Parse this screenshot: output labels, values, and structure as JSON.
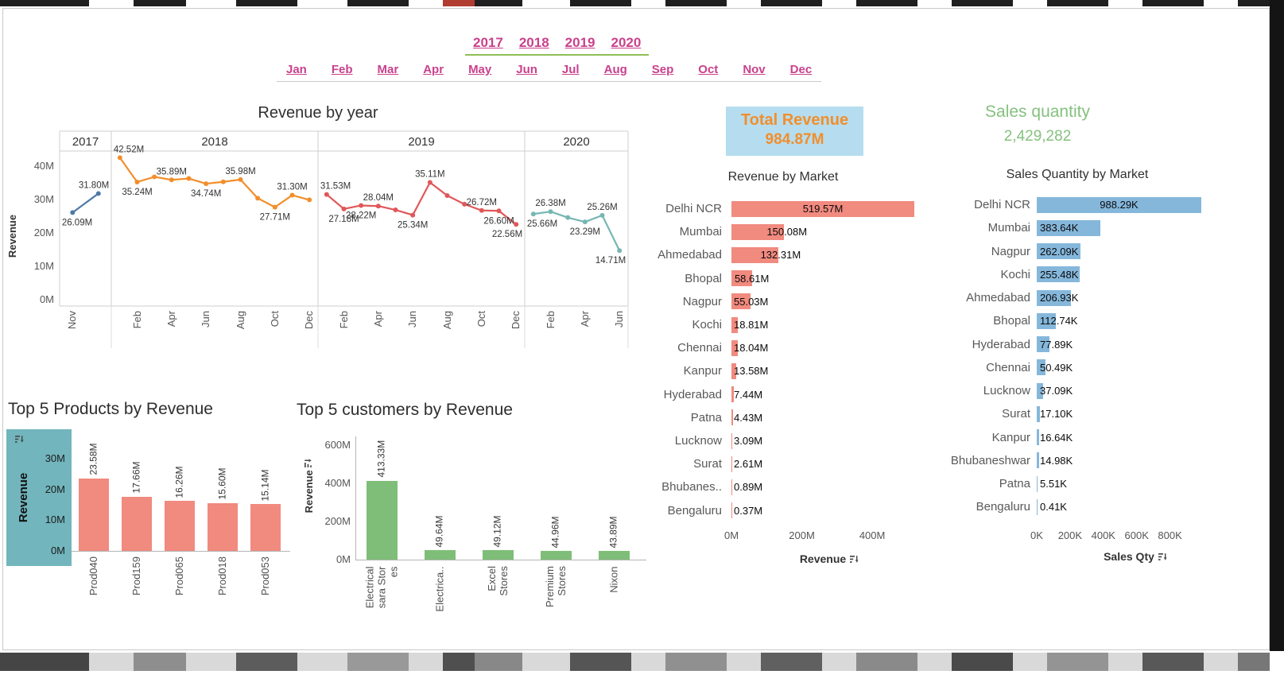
{
  "filters": {
    "years": [
      "2017",
      "2018",
      "2019",
      "2020"
    ],
    "months": [
      "Jan",
      "Feb",
      "Mar",
      "Apr",
      "May",
      "Jun",
      "Jul",
      "Aug",
      "Sep",
      "Oct",
      "Nov",
      "Dec"
    ],
    "text_color": "#c9418c"
  },
  "cards": {
    "total_revenue": {
      "title": "Total Revenue",
      "value": "984.87M",
      "bg": "#b5ddef",
      "color": "#f28e2b"
    },
    "sales_quantity": {
      "title": "Sales quantity",
      "value": "2,429,282",
      "color": "#85c17e"
    }
  },
  "chart_data": [
    {
      "id": "revenue_by_year",
      "type": "line",
      "title": "Revenue by year",
      "ylabel": "Revenue",
      "yticks": [
        "0M",
        "10M",
        "20M",
        "30M",
        "40M"
      ],
      "ytick_values": [
        0,
        10,
        20,
        30,
        40
      ],
      "ylim": [
        0,
        45
      ],
      "unit": "M",
      "note": "points without data labels are estimated from the plot",
      "series": [
        {
          "year": "2017",
          "color": "#4e79a7",
          "months": [
            "Nov",
            "Dec"
          ],
          "values": [
            26.09,
            31.8
          ],
          "point_labels": [
            {
              "i": 0,
              "text": "26.09M",
              "pos": "below"
            },
            {
              "i": 1,
              "text": "31.80M",
              "pos": "above"
            }
          ],
          "xticks": [
            "Nov"
          ]
        },
        {
          "year": "2018",
          "color": "#f28e2b",
          "months": [
            "Jan",
            "Feb",
            "Mar",
            "Apr",
            "May",
            "Jun",
            "Jul",
            "Aug",
            "Sep",
            "Oct",
            "Nov",
            "Dec"
          ],
          "values": [
            42.52,
            35.24,
            36.8,
            35.89,
            36.3,
            34.74,
            35.3,
            35.98,
            30.4,
            27.71,
            31.3,
            29.9
          ],
          "point_labels": [
            {
              "i": 0,
              "text": "42.52M",
              "pos": "above"
            },
            {
              "i": 1,
              "text": "35.24M",
              "pos": "below"
            },
            {
              "i": 3,
              "text": "35.89M",
              "pos": "above"
            },
            {
              "i": 5,
              "text": "34.74M",
              "pos": "below"
            },
            {
              "i": 7,
              "text": "35.98M",
              "pos": "above"
            },
            {
              "i": 9,
              "text": "27.71M",
              "pos": "below"
            },
            {
              "i": 10,
              "text": "31.30M",
              "pos": "above"
            }
          ],
          "xticks": [
            "Feb",
            "Apr",
            "Jun",
            "Aug",
            "Oct",
            "Dec"
          ]
        },
        {
          "year": "2019",
          "color": "#e15759",
          "months": [
            "Jan",
            "Feb",
            "Mar",
            "Apr",
            "May",
            "Jun",
            "Jul",
            "Aug",
            "Sep",
            "Oct",
            "Nov",
            "Dec"
          ],
          "values": [
            31.53,
            27.18,
            28.22,
            28.04,
            26.9,
            25.34,
            35.11,
            31.2,
            28.6,
            26.72,
            26.6,
            22.56
          ],
          "point_labels": [
            {
              "i": 0,
              "text": "31.53M",
              "pos": "above"
            },
            {
              "i": 1,
              "text": "27.18M",
              "pos": "below"
            },
            {
              "i": 2,
              "text": "28.22M",
              "pos": "below"
            },
            {
              "i": 3,
              "text": "28.04M",
              "pos": "above"
            },
            {
              "i": 5,
              "text": "25.34M",
              "pos": "below"
            },
            {
              "i": 6,
              "text": "35.11M",
              "pos": "above"
            },
            {
              "i": 9,
              "text": "26.72M",
              "pos": "above"
            },
            {
              "i": 10,
              "text": "26.60M",
              "pos": "below"
            },
            {
              "i": 11,
              "text": "22.56M",
              "pos": "below"
            }
          ],
          "xticks": [
            "Feb",
            "Apr",
            "Jun",
            "Aug",
            "Oct",
            "Dec"
          ]
        },
        {
          "year": "2020",
          "color": "#76b7b2",
          "months": [
            "Jan",
            "Feb",
            "Mar",
            "Apr",
            "May",
            "Jun"
          ],
          "values": [
            25.66,
            26.38,
            24.6,
            23.29,
            25.26,
            14.71
          ],
          "point_labels": [
            {
              "i": 0,
              "text": "25.66M",
              "pos": "below"
            },
            {
              "i": 1,
              "text": "26.38M",
              "pos": "above"
            },
            {
              "i": 3,
              "text": "23.29M",
              "pos": "below"
            },
            {
              "i": 4,
              "text": "25.26M",
              "pos": "above"
            },
            {
              "i": 5,
              "text": "14.71M",
              "pos": "below"
            }
          ],
          "xticks": [
            "Feb",
            "Apr",
            "Jun"
          ]
        }
      ]
    },
    {
      "id": "revenue_by_market",
      "type": "bar",
      "orientation": "horizontal",
      "title": "Revenue by Market",
      "xlabel": "Revenue",
      "xticks": [
        "0M",
        "200M",
        "400M"
      ],
      "xtick_values": [
        0,
        200,
        400
      ],
      "xlim": [
        0,
        560
      ],
      "unit": "M",
      "bar_color": "#f18a7f",
      "categories": [
        "Delhi NCR",
        "Mumbai",
        "Ahmedabad",
        "Bhopal",
        "Nagpur",
        "Kochi",
        "Chennai",
        "Kanpur",
        "Hyderabad",
        "Patna",
        "Lucknow",
        "Surat",
        "Bhubanes..",
        "Bengaluru"
      ],
      "values": [
        519.57,
        150.08,
        132.31,
        58.61,
        55.03,
        18.81,
        18.04,
        13.58,
        7.44,
        4.43,
        3.09,
        2.61,
        0.89,
        0.37
      ],
      "value_labels": [
        "519.57M",
        "150.08M",
        "132.31M",
        "58.61M",
        "55.03M",
        "18.81M",
        "18.04M",
        "13.58M",
        "7.44M",
        "4.43M",
        "3.09M",
        "2.61M",
        "0.89M",
        "0.37M"
      ]
    },
    {
      "id": "sales_qty_by_market",
      "type": "bar",
      "orientation": "horizontal",
      "title": "Sales Quantity by Market",
      "xlabel": "Sales Qty",
      "xticks": [
        "0K",
        "200K",
        "400K",
        "600K",
        "800K"
      ],
      "xtick_values": [
        0,
        200,
        400,
        600,
        800
      ],
      "xlim": [
        0,
        960
      ],
      "unit": "K",
      "bar_color": "#85b7db",
      "categories": [
        "Delhi NCR",
        "Mumbai",
        "Nagpur",
        "Kochi",
        "Ahmedabad",
        "Bhopal",
        "Hyderabad",
        "Chennai",
        "Lucknow",
        "Surat",
        "Kanpur",
        "Bhubaneshwar",
        "Patna",
        "Bengaluru"
      ],
      "values": [
        988.29,
        383.64,
        262.09,
        255.48,
        206.93,
        112.74,
        77.89,
        50.49,
        37.09,
        17.1,
        16.64,
        14.98,
        5.51,
        0.41
      ],
      "value_labels": [
        "988.29K",
        "383.64K",
        "262.09K",
        "255.48K",
        "206.93K",
        "112.74K",
        "77.89K",
        "50.49K",
        "37.09K",
        "17.10K",
        "16.64K",
        "14.98K",
        "5.51K",
        "0.41K"
      ]
    },
    {
      "id": "top5_products",
      "type": "bar",
      "orientation": "vertical",
      "title": "Top 5 Products by Revenue",
      "ylabel": "Revenue",
      "yticks": [
        "0M",
        "10M",
        "20M",
        "30M"
      ],
      "ytick_values": [
        0,
        10,
        20,
        30
      ],
      "ylim": [
        0,
        31
      ],
      "unit": "M",
      "bar_color": "#f18a7f",
      "ylabel_bg": "#72b5bd",
      "categories": [
        "Prod040",
        "Prod159",
        "Prod065",
        "Prod018",
        "Prod053"
      ],
      "values": [
        23.58,
        17.66,
        16.26,
        15.6,
        15.14
      ],
      "value_labels": [
        "23.58M",
        "17.66M",
        "16.26M",
        "15.60M",
        "15.14M"
      ]
    },
    {
      "id": "top5_customers",
      "type": "bar",
      "orientation": "vertical",
      "title": "Top 5 customers by Revenue",
      "ylabel": "Revenue",
      "yticks": [
        "0M",
        "200M",
        "400M",
        "600M"
      ],
      "ytick_values": [
        0,
        200,
        400,
        600
      ],
      "ylim": [
        0,
        650
      ],
      "unit": "M",
      "bar_color": "#7fbe78",
      "categories": [
        "Electrical sara Stores",
        "Electrica..",
        "Excel Stores",
        "Premium Stores",
        "Nixon"
      ],
      "category_lines": [
        [
          "Electrical",
          "sara Stor",
          "es"
        ],
        [
          "Electrica.."
        ],
        [
          "Excel",
          "Stores"
        ],
        [
          "Premium",
          "Stores"
        ],
        [
          "Nixon"
        ]
      ],
      "values": [
        413.33,
        49.64,
        49.12,
        44.96,
        43.89
      ],
      "value_labels": [
        "413.33M",
        "49.64M",
        "49.12M",
        "44.96M",
        "43.89M"
      ]
    }
  ]
}
